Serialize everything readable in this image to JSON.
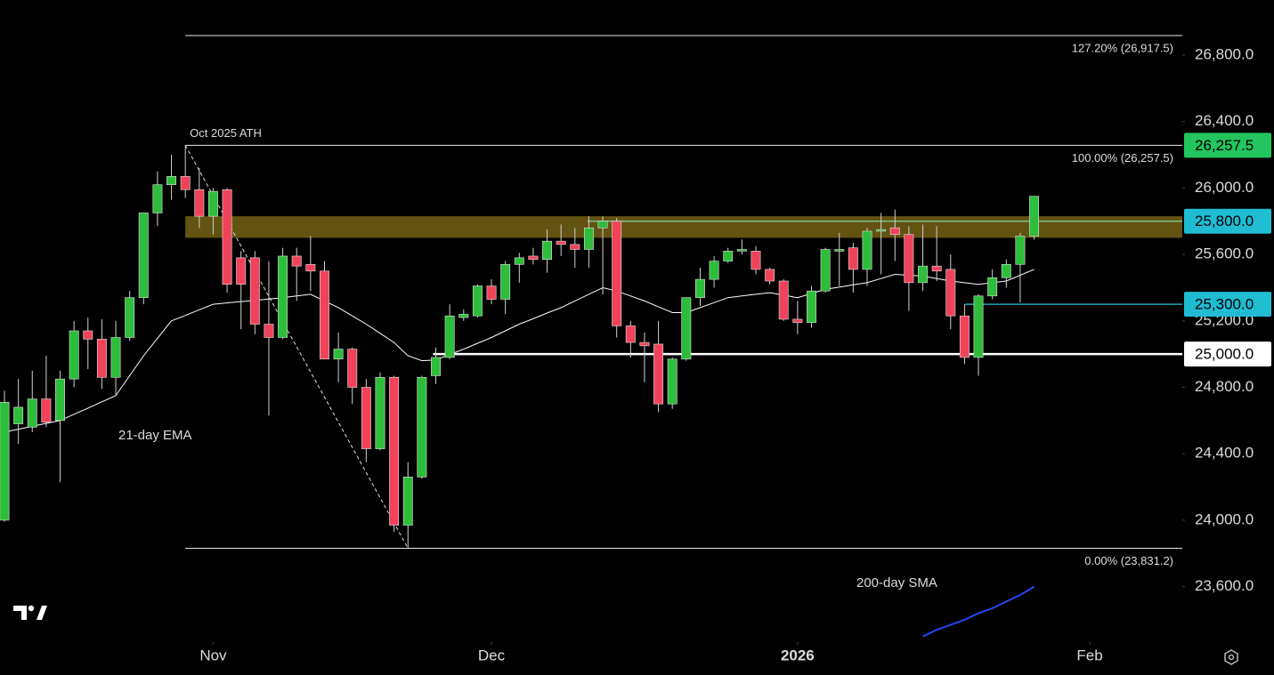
{
  "chart_data": {
    "type": "candlestick",
    "xlim": [
      -0.32,
      84.65
    ],
    "xticks": [
      {
        "value": 15,
        "label": "Nov"
      },
      {
        "value": 35,
        "label": "Dec"
      },
      {
        "value": 57,
        "label": "2026",
        "bold": true
      },
      {
        "value": 78,
        "label": "Feb"
      }
    ],
    "ylim": [
      23266,
      27132
    ],
    "yticks": [
      {
        "value": 23600,
        "label": "23,600.0"
      },
      {
        "value": 24000,
        "label": "24,000.0"
      },
      {
        "value": 24400,
        "label": "24,400.0"
      },
      {
        "value": 24800,
        "label": "24,800.0"
      },
      {
        "value": 25200,
        "label": "25,200.0"
      },
      {
        "value": 25600,
        "label": "25,600.0"
      },
      {
        "value": 26000,
        "label": "26,000.0"
      },
      {
        "value": 26400,
        "label": "26,400.0"
      },
      {
        "value": 26800,
        "label": "26,800.0"
      }
    ],
    "up_color": "#2ebd3a",
    "down_color": "#f0435a",
    "open": [
      24000,
      24580,
      24560,
      24730,
      24600,
      24850,
      25140,
      25090,
      24860,
      25100,
      25340,
      25850,
      26020,
      26070,
      25990,
      25830,
      25990,
      25580,
      25580,
      25180,
      25100,
      25590,
      25540,
      25500,
      24970,
      25030,
      24800,
      24430,
      24860,
      23970,
      24260,
      24870,
      24980,
      25220,
      25230,
      25410,
      25330,
      25540,
      25590,
      25570,
      25680,
      25660,
      25630,
      25760,
      25800,
      25170,
      25070,
      25060,
      24700,
      24970,
      25340,
      25450,
      25560,
      25620,
      25620,
      25510,
      25440,
      25210,
      25190,
      25380,
      25620,
      25640,
      25510,
      25740,
      25760,
      25720,
      25430,
      25530,
      25510,
      25230,
      24980,
      25350,
      25460,
      25540,
      25710
    ],
    "high": [
      24780,
      24850,
      24900,
      24990,
      24900,
      25200,
      25220,
      25210,
      25200,
      25380,
      25850,
      26100,
      26200,
      26257.5,
      26120,
      26000,
      26000,
      25620,
      25620,
      25560,
      25640,
      25640,
      25710,
      25560,
      25130,
      25040,
      24850,
      24890,
      24870,
      24350,
      24870,
      25040,
      25300,
      25270,
      25420,
      25450,
      25560,
      25610,
      25640,
      25750,
      25780,
      25760,
      25830,
      25830,
      25820,
      25200,
      25130,
      25200,
      24980,
      25340,
      25520,
      25590,
      25640,
      25690,
      25650,
      25520,
      25450,
      25320,
      25410,
      25640,
      25730,
      25670,
      25760,
      25850,
      25870,
      25770,
      25780,
      25770,
      25600,
      25300,
      25360,
      25510,
      25570,
      25730,
      25950
    ],
    "low": [
      23990,
      24460,
      24530,
      24560,
      24230,
      24800,
      24910,
      24790,
      24750,
      25080,
      25300,
      25770,
      25930,
      25940,
      25760,
      25720,
      25370,
      25150,
      25120,
      24630,
      25090,
      25320,
      25380,
      24970,
      24830,
      24700,
      24350,
      24420,
      23930,
      23831.2,
      24250,
      24820,
      24970,
      25200,
      25220,
      25300,
      25240,
      25430,
      25540,
      25490,
      25590,
      25520,
      25520,
      25360,
      25100,
      24980,
      24830,
      24650,
      24670,
      24960,
      25290,
      25400,
      25550,
      25600,
      25480,
      25420,
      25200,
      25120,
      25160,
      25370,
      25410,
      25370,
      25410,
      25480,
      25560,
      25260,
      25380,
      25440,
      25150,
      24940,
      24870,
      25330,
      25400,
      25310,
      25690
    ],
    "close": [
      24710,
      24680,
      24730,
      24590,
      24850,
      25140,
      25090,
      24860,
      25100,
      25340,
      25850,
      26020,
      26070,
      25990,
      25830,
      25980,
      25420,
      25420,
      25180,
      25100,
      25590,
      25530,
      25500,
      24970,
      25030,
      24800,
      24430,
      24860,
      23970,
      24260,
      24860,
      24980,
      25230,
      25240,
      25410,
      25330,
      25540,
      25580,
      25570,
      25680,
      25660,
      25630,
      25760,
      25800,
      25170,
      25070,
      25050,
      24700,
      24970,
      25340,
      25450,
      25560,
      25620,
      25630,
      25510,
      25440,
      25210,
      25190,
      25380,
      25630,
      25630,
      25510,
      25740,
      25750,
      25720,
      25430,
      25530,
      25500,
      25230,
      24980,
      25350,
      25460,
      25540,
      25710,
      25950
    ],
    "series": [
      {
        "name": "21-day EMA",
        "color": "#ffffff",
        "values": [
          24530,
          24548,
          24565,
          24583,
          24600,
          24638,
          24675,
          24713,
          24750,
          24870,
          24990,
          25095,
          25200,
          25233,
          25267,
          25300,
          25308,
          25316,
          25324,
          25332,
          25340,
          25350,
          25360,
          25320,
          25280,
          25230,
          25180,
          25125,
          25070,
          24990,
          24960,
          24965,
          24998,
          25030,
          25065,
          25100,
          25140,
          25180,
          25213,
          25247,
          25280,
          25320,
          25360,
          25400,
          25380,
          25350,
          25320,
          25285,
          25250,
          25250,
          25280,
          25310,
          25340,
          25350,
          25360,
          25370,
          25355,
          25340,
          25365,
          25390,
          25403,
          25417,
          25430,
          25455,
          25480,
          25475,
          25470,
          25455,
          25440,
          25430,
          25420,
          25430,
          25440,
          25475,
          25510
        ]
      },
      {
        "name": "200-day SMA",
        "color": "#2446f0",
        "values": [
          null,
          null,
          null,
          null,
          null,
          null,
          null,
          null,
          null,
          null,
          null,
          null,
          null,
          null,
          null,
          null,
          null,
          null,
          null,
          null,
          null,
          null,
          null,
          null,
          null,
          null,
          null,
          null,
          null,
          null,
          null,
          null,
          null,
          null,
          null,
          null,
          null,
          null,
          null,
          null,
          null,
          null,
          null,
          null,
          null,
          null,
          null,
          null,
          null,
          null,
          null,
          null,
          null,
          null,
          null,
          null,
          null,
          null,
          null,
          null,
          null,
          null,
          null,
          null,
          null,
          null,
          23300,
          23340,
          23370,
          23400,
          23440,
          23470,
          23510,
          23550,
          23600
        ]
      }
    ],
    "zone": {
      "low": 25700,
      "high": 25830,
      "start": 13,
      "color": "#6e5c14"
    },
    "levels": [
      {
        "value": 26917.5,
        "label": "127.20% (26,917.5)"
      },
      {
        "value": 26257.5,
        "label": "100.00% (26,257.5)"
      },
      {
        "value": 23831.2,
        "label": "0.00% (23,831.2)"
      }
    ],
    "levels_start": 13,
    "lines": [
      {
        "value": 25800,
        "start": 41.9,
        "color": "#7fd6a6"
      },
      {
        "value": 25300,
        "start": 69,
        "color": "#26c6da"
      },
      {
        "value": 25000,
        "start": 30.8,
        "color": "#ffffff",
        "thick": true
      }
    ],
    "trendline": {
      "from": 13,
      "to": 29
    },
    "annotation": {
      "text": "Oct 2025 ATH",
      "color": "#2db84c"
    },
    "price_labels": [
      {
        "value": 26257.5,
        "label": "26,257.5",
        "color": "#22c55e"
      },
      {
        "value": 25800,
        "label": "25,800.0",
        "color": "#1fbcd2"
      },
      {
        "value": 25300,
        "label": "25,300.0",
        "color": "#1fbcd2"
      },
      {
        "value": 25000,
        "label": "25,000.0",
        "color": "#ffffff"
      }
    ]
  }
}
